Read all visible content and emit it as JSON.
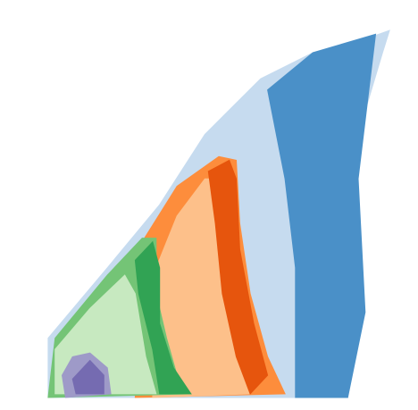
{
  "chart_data": {
    "type": "area",
    "xlim": [
      0,
      100
    ],
    "ylim": [
      0,
      100
    ],
    "series": [
      {
        "color": "#c6dbef",
        "x": [
          1,
          1,
          18,
          33,
          46,
          62,
          77,
          90,
          99,
          97,
          90,
          90,
          87
        ],
        "values": [
          0,
          16,
          35,
          52,
          71,
          86,
          93,
          96,
          99,
          93,
          71,
          35,
          0
        ]
      },
      {
        "color": "#4a90c8",
        "x": [
          64,
          77,
          95,
          90,
          92,
          87,
          72,
          72,
          69
        ],
        "values": [
          83,
          93,
          98,
          59,
          23,
          0,
          0,
          35,
          59
        ]
      },
      {
        "color": "#fd8d3c",
        "x": [
          26,
          28,
          38,
          50,
          55,
          56,
          59,
          64,
          69
        ],
        "values": [
          0,
          42,
          57,
          65,
          64,
          47,
          28,
          11,
          1
        ]
      },
      {
        "color": "#fdc08a",
        "x": [
          31,
          32,
          38,
          46,
          51,
          54,
          56,
          59
        ],
        "values": [
          0,
          35,
          49,
          59,
          59,
          35,
          16,
          1
        ]
      },
      {
        "color": "#e6550d",
        "x": [
          47,
          53,
          55,
          56,
          60,
          64,
          59,
          55,
          51,
          49
        ],
        "values": [
          61,
          64,
          59,
          40,
          20,
          6,
          1,
          11,
          28,
          47
        ]
      },
      {
        "color": "#74c476",
        "x": [
          1,
          3,
          18,
          28,
          32,
          32,
          35,
          38,
          42
        ],
        "values": [
          0,
          16,
          33,
          43,
          43,
          28,
          16,
          6,
          1
        ]
      },
      {
        "color": "#c7e9c0",
        "x": [
          3,
          3,
          13,
          23,
          26,
          29,
          32
        ],
        "values": [
          1,
          13,
          24,
          33,
          28,
          11,
          1
        ]
      },
      {
        "color": "#31a354",
        "x": [
          26,
          31,
          33,
          33,
          37,
          42,
          33,
          31,
          27
        ],
        "values": [
          37,
          42,
          35,
          20,
          8,
          1,
          1,
          13,
          28
        ]
      },
      {
        "color": "#9e9ac8",
        "x": [
          5,
          8,
          13,
          18,
          19,
          6
        ],
        "values": [
          6,
          11,
          12,
          8,
          1,
          0
        ]
      },
      {
        "color": "#756bb1",
        "x": [
          8,
          13,
          17,
          17,
          9
        ],
        "values": [
          5,
          10,
          6,
          1,
          1
        ]
      }
    ]
  }
}
